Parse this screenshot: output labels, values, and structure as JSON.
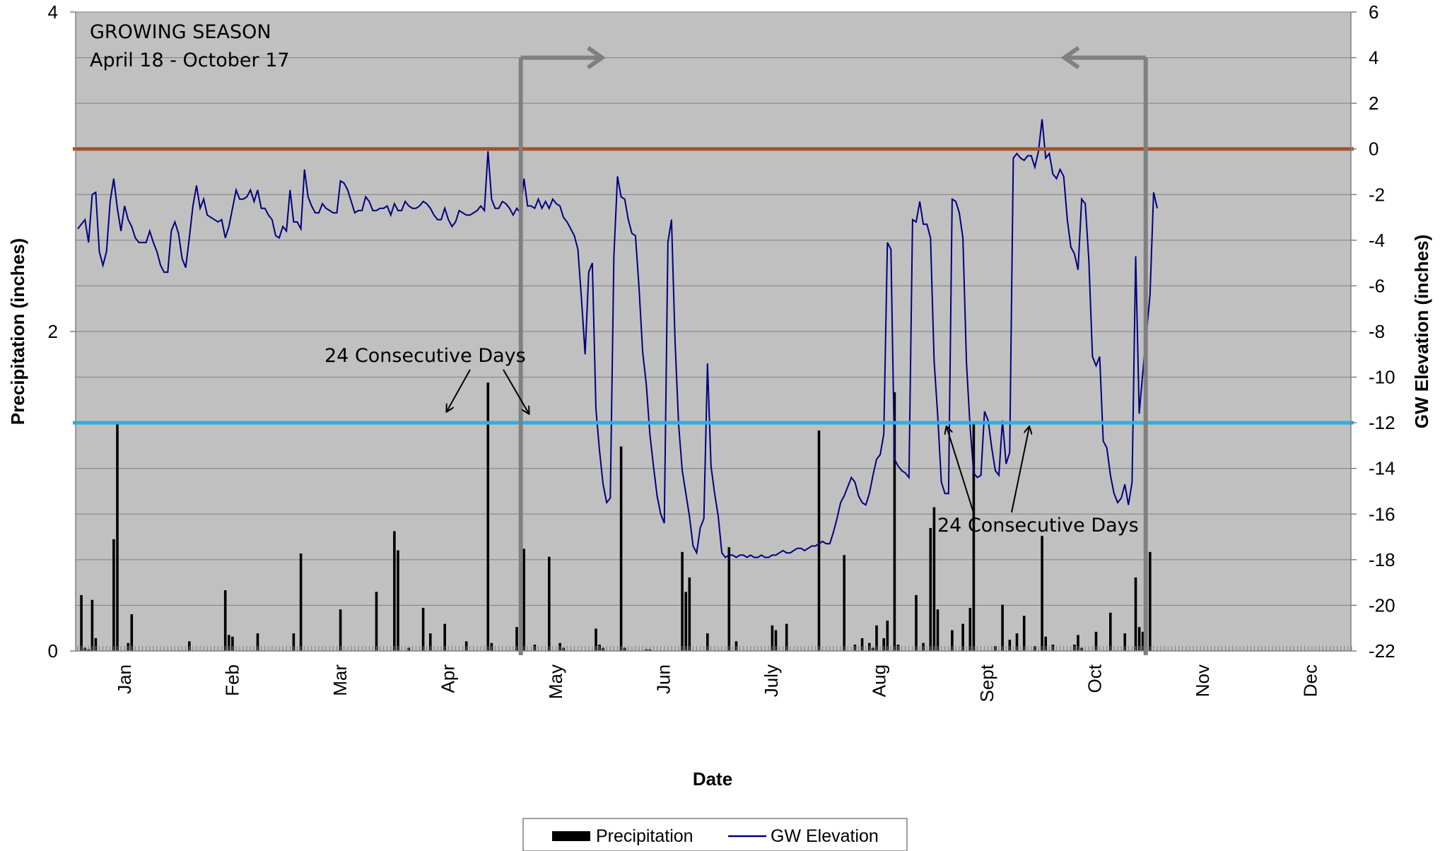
{
  "chart_data": {
    "type": "bar+line",
    "xlabel": "Date",
    "ylabel_left": "Precipitation (inches)",
    "ylabel_right": "GW Elevation (inches)",
    "ylim_left": [
      0,
      4
    ],
    "ylim_right": [
      -22,
      6
    ],
    "yticks_left": [
      "0",
      "2",
      "4"
    ],
    "yticks_right": [
      "6",
      "4",
      "2",
      "0",
      "-2",
      "-4",
      "-6",
      "-8",
      "-10",
      "-12",
      "-14",
      "-16",
      "-18",
      "-20",
      "-22"
    ],
    "months": [
      "Jan",
      "Feb",
      "Mar",
      "Apr",
      "May",
      "Jun",
      "July",
      "Aug",
      "Sept",
      "Oct",
      "Nov",
      "Dec"
    ],
    "grid": "horizontal",
    "legend_position": "bottom",
    "legend": [
      {
        "label": "Precipitation",
        "color": "#000000"
      },
      {
        "label": "GW Elevation",
        "color": "#00007f"
      }
    ],
    "precipitation": [
      [
        1,
        0.35
      ],
      [
        2,
        0.02
      ],
      [
        3,
        0.01
      ],
      [
        4,
        0.32
      ],
      [
        5,
        0.08
      ],
      [
        10,
        0.7
      ],
      [
        11,
        1.43
      ],
      [
        14,
        0.05
      ],
      [
        15,
        0.23
      ],
      [
        31,
        0.06
      ],
      [
        41,
        0.38
      ],
      [
        42,
        0.1
      ],
      [
        43,
        0.09
      ],
      [
        50,
        0.11
      ],
      [
        60,
        0.11
      ],
      [
        62,
        0.61
      ],
      [
        73,
        0.26
      ],
      [
        83,
        0.37
      ],
      [
        88,
        0.75
      ],
      [
        89,
        0.63
      ],
      [
        92,
        0.02
      ],
      [
        96,
        0.27
      ],
      [
        98,
        0.11
      ],
      [
        102,
        0.17
      ],
      [
        108,
        0.06
      ],
      [
        114,
        1.68
      ],
      [
        115,
        0.05
      ],
      [
        122,
        0.15
      ],
      [
        123,
        0.25
      ],
      [
        124,
        0.64
      ],
      [
        127,
        0.04
      ],
      [
        131,
        0.59
      ],
      [
        134,
        0.05
      ],
      [
        135,
        0.02
      ],
      [
        144,
        0.14
      ],
      [
        145,
        0.04
      ],
      [
        146,
        0.02
      ],
      [
        151,
        1.28
      ],
      [
        152,
        0.02
      ],
      [
        158,
        0.01
      ],
      [
        159,
        0.01
      ],
      [
        168,
        0.62
      ],
      [
        169,
        0.37
      ],
      [
        170,
        0.46
      ],
      [
        175,
        0.11
      ],
      [
        181,
        0.65
      ],
      [
        183,
        0.06
      ],
      [
        193,
        0.16
      ],
      [
        194,
        0.13
      ],
      [
        197,
        0.17
      ],
      [
        206,
        1.38
      ],
      [
        213,
        0.6
      ],
      [
        216,
        0.04
      ],
      [
        218,
        0.08
      ],
      [
        220,
        0.05
      ],
      [
        221,
        0.02
      ],
      [
        222,
        0.16
      ],
      [
        224,
        0.08
      ],
      [
        225,
        0.19
      ],
      [
        227,
        1.62
      ],
      [
        228,
        0.04
      ],
      [
        233,
        0.35
      ],
      [
        235,
        0.05
      ],
      [
        237,
        0.77
      ],
      [
        238,
        0.9
      ],
      [
        239,
        0.26
      ],
      [
        243,
        0.13
      ],
      [
        246,
        0.17
      ],
      [
        248,
        0.27
      ],
      [
        249,
        1.43
      ],
      [
        255,
        0.03
      ],
      [
        257,
        0.29
      ],
      [
        259,
        0.07
      ],
      [
        261,
        0.11
      ],
      [
        263,
        0.22
      ],
      [
        266,
        0.03
      ],
      [
        268,
        0.72
      ],
      [
        269,
        0.09
      ],
      [
        271,
        0.04
      ],
      [
        277,
        0.04
      ],
      [
        278,
        0.1
      ],
      [
        279,
        0.02
      ],
      [
        283,
        0.12
      ],
      [
        287,
        0.24
      ],
      [
        291,
        0.11
      ],
      [
        294,
        0.46
      ],
      [
        295,
        0.15
      ],
      [
        296,
        0.12
      ],
      [
        297,
        0.07
      ],
      [
        298,
        0.62
      ]
    ],
    "gw_elevation": [
      [
        0,
        -3.5
      ],
      [
        2,
        -3.1
      ],
      [
        3,
        -4.1
      ],
      [
        4,
        -2
      ],
      [
        5,
        -1.9
      ],
      [
        6,
        -4.5
      ],
      [
        7,
        -5.1
      ],
      [
        8,
        -4.5
      ],
      [
        9,
        -2.3
      ],
      [
        10,
        -1.3
      ],
      [
        11,
        -2.6
      ],
      [
        12,
        -3.6
      ],
      [
        13,
        -2.5
      ],
      [
        14,
        -3.1
      ],
      [
        15,
        -3.4
      ],
      [
        16,
        -3.9
      ],
      [
        17,
        -4.1
      ],
      [
        19,
        -4.1
      ],
      [
        20,
        -3.6
      ],
      [
        21,
        -4.1
      ],
      [
        22,
        -4.5
      ],
      [
        23,
        -5.1
      ],
      [
        24,
        -5.4
      ],
      [
        25,
        -5.4
      ],
      [
        26,
        -3.6
      ],
      [
        27,
        -3.2
      ],
      [
        28,
        -3.7
      ],
      [
        29,
        -4.8
      ],
      [
        30,
        -5.2
      ],
      [
        31,
        -3.9
      ],
      [
        32,
        -2.5
      ],
      [
        33,
        -1.6
      ],
      [
        34,
        -2.6
      ],
      [
        35,
        -2.2
      ],
      [
        36,
        -2.9
      ],
      [
        38,
        -3.1
      ],
      [
        39,
        -3.2
      ],
      [
        40,
        -3.1
      ],
      [
        41,
        -3.9
      ],
      [
        42,
        -3.4
      ],
      [
        43,
        -2.6
      ],
      [
        44,
        -1.8
      ],
      [
        45,
        -2.2
      ],
      [
        46,
        -2.2
      ],
      [
        47,
        -2.1
      ],
      [
        48,
        -1.8
      ],
      [
        49,
        -2.3
      ],
      [
        50,
        -1.8
      ],
      [
        51,
        -2.6
      ],
      [
        52,
        -2.6
      ],
      [
        53,
        -2.9
      ],
      [
        54,
        -3.1
      ],
      [
        55,
        -3.8
      ],
      [
        56,
        -3.9
      ],
      [
        57,
        -3.4
      ],
      [
        58,
        -3.6
      ],
      [
        59,
        -1.8
      ],
      [
        60,
        -3.2
      ],
      [
        61,
        -3.2
      ],
      [
        62,
        -3.5
      ],
      [
        63,
        -0.9
      ],
      [
        64,
        -2.1
      ],
      [
        65,
        -2.5
      ],
      [
        66,
        -2.8
      ],
      [
        67,
        -2.8
      ],
      [
        68,
        -2.4
      ],
      [
        69,
        -2.6
      ],
      [
        70,
        -2.7
      ],
      [
        71,
        -2.8
      ],
      [
        72,
        -2.8
      ],
      [
        73,
        -1.4
      ],
      [
        74,
        -1.5
      ],
      [
        75,
        -1.8
      ],
      [
        76,
        -2.3
      ],
      [
        77,
        -2.8
      ],
      [
        78,
        -2.7
      ],
      [
        79,
        -2.7
      ],
      [
        80,
        -2.1
      ],
      [
        81,
        -2.3
      ],
      [
        82,
        -2.7
      ],
      [
        83,
        -2.7
      ],
      [
        84,
        -2.6
      ],
      [
        85,
        -2.6
      ],
      [
        86,
        -2.5
      ],
      [
        87,
        -2.9
      ],
      [
        88,
        -2.4
      ],
      [
        89,
        -2.7
      ],
      [
        90,
        -2.7
      ],
      [
        91,
        -2.3
      ],
      [
        92,
        -2.5
      ],
      [
        93,
        -2.6
      ],
      [
        94,
        -2.6
      ],
      [
        95,
        -2.5
      ],
      [
        96,
        -2.3
      ],
      [
        97,
        -2.4
      ],
      [
        98,
        -2.6
      ],
      [
        99,
        -2.9
      ],
      [
        100,
        -3.1
      ],
      [
        101,
        -3.1
      ],
      [
        102,
        -2.6
      ],
      [
        103,
        -3.1
      ],
      [
        104,
        -3.4
      ],
      [
        105,
        -3.2
      ],
      [
        106,
        -2.7
      ],
      [
        107,
        -2.8
      ],
      [
        108,
        -2.9
      ],
      [
        109,
        -2.9
      ],
      [
        110,
        -2.8
      ],
      [
        111,
        -2.7
      ],
      [
        112,
        -2.5
      ],
      [
        113,
        -2.7
      ],
      [
        114,
        -0.1
      ],
      [
        115,
        -2.2
      ],
      [
        116,
        -2.6
      ],
      [
        117,
        -2.6
      ],
      [
        118,
        -2.3
      ],
      [
        119,
        -2.4
      ],
      [
        120,
        -2.6
      ],
      [
        121,
        -2.9
      ],
      [
        122,
        -2.6
      ],
      [
        123,
        -2.8
      ],
      [
        124,
        -1.3
      ],
      [
        125,
        -2.5
      ],
      [
        126,
        -2.5
      ],
      [
        127,
        -2.6
      ],
      [
        128,
        -2.2
      ],
      [
        129,
        -2.6
      ],
      [
        130,
        -2.3
      ],
      [
        131,
        -2.6
      ],
      [
        132,
        -2.2
      ],
      [
        133,
        -2.4
      ],
      [
        134,
        -2.5
      ],
      [
        135,
        -3
      ],
      [
        136,
        -3.2
      ],
      [
        137,
        -3.5
      ],
      [
        138,
        -3.8
      ],
      [
        139,
        -4.4
      ],
      [
        140,
        -6.6
      ],
      [
        141,
        -9
      ],
      [
        142,
        -5.4
      ],
      [
        143,
        -5
      ],
      [
        144,
        -11.4
      ],
      [
        145,
        -13.2
      ],
      [
        146,
        -14.7
      ],
      [
        147,
        -15.5
      ],
      [
        148,
        -15.3
      ],
      [
        149,
        -4.7
      ],
      [
        150,
        -1.2
      ],
      [
        151,
        -2.1
      ],
      [
        152,
        -2.2
      ],
      [
        153,
        -3.1
      ],
      [
        154,
        -3.7
      ],
      [
        155,
        -3.8
      ],
      [
        156,
        -6.1
      ],
      [
        157,
        -8.9
      ],
      [
        158,
        -10.3
      ],
      [
        159,
        -12.5
      ],
      [
        160,
        -13.9
      ],
      [
        161,
        -15.2
      ],
      [
        162,
        -16
      ],
      [
        163,
        -16.4
      ],
      [
        164,
        -4.1
      ],
      [
        165,
        -3.1
      ],
      [
        166,
        -8.4
      ],
      [
        167,
        -12.1
      ],
      [
        168,
        -14.1
      ],
      [
        169,
        -15.1
      ],
      [
        170,
        -16.1
      ],
      [
        171,
        -17.4
      ],
      [
        172,
        -17.7
      ],
      [
        173,
        -16.6
      ],
      [
        174,
        -16.2
      ],
      [
        175,
        -9.4
      ],
      [
        176,
        -13.9
      ],
      [
        177,
        -15.1
      ],
      [
        178,
        -16.1
      ],
      [
        179,
        -17.7
      ],
      [
        180,
        -17.9
      ],
      [
        181,
        -17.8
      ],
      [
        182,
        -17.8
      ],
      [
        183,
        -17.9
      ],
      [
        184,
        -17.8
      ],
      [
        185,
        -17.8
      ],
      [
        186,
        -17.9
      ],
      [
        187,
        -17.8
      ],
      [
        188,
        -17.9
      ],
      [
        189,
        -17.9
      ],
      [
        190,
        -17.8
      ],
      [
        191,
        -17.9
      ],
      [
        192,
        -17.9
      ],
      [
        193,
        -17.8
      ],
      [
        194,
        -17.8
      ],
      [
        195,
        -17.7
      ],
      [
        196,
        -17.6
      ],
      [
        197,
        -17.7
      ],
      [
        198,
        -17.7
      ],
      [
        199,
        -17.6
      ],
      [
        200,
        -17.5
      ],
      [
        201,
        -17.5
      ],
      [
        202,
        -17.6
      ],
      [
        203,
        -17.5
      ],
      [
        204,
        -17.4
      ],
      [
        205,
        -17.4
      ],
      [
        206,
        -17.3
      ],
      [
        207,
        -17.2
      ],
      [
        208,
        -17.3
      ],
      [
        209,
        -17.3
      ],
      [
        210,
        -16.8
      ],
      [
        211,
        -16.2
      ],
      [
        212,
        -15.5
      ],
      [
        213,
        -15.2
      ],
      [
        214,
        -14.8
      ],
      [
        215,
        -14.4
      ],
      [
        216,
        -14.6
      ],
      [
        217,
        -15.2
      ],
      [
        218,
        -15.5
      ],
      [
        219,
        -15.6
      ],
      [
        220,
        -15.1
      ],
      [
        221,
        -14.3
      ],
      [
        222,
        -13.6
      ],
      [
        223,
        -13.4
      ],
      [
        224,
        -12.5
      ],
      [
        225,
        -4.1
      ],
      [
        226,
        -4.4
      ],
      [
        227,
        -13.6
      ],
      [
        228,
        -13.9
      ],
      [
        229,
        -14.1
      ],
      [
        230,
        -14.2
      ],
      [
        231,
        -14.4
      ],
      [
        232,
        -3.1
      ],
      [
        233,
        -3.2
      ],
      [
        234,
        -2.3
      ],
      [
        235,
        -3.3
      ],
      [
        236,
        -3.3
      ],
      [
        237,
        -3.9
      ],
      [
        238,
        -9.3
      ],
      [
        239,
        -11.7
      ],
      [
        240,
        -14.6
      ],
      [
        241,
        -15.1
      ],
      [
        242,
        -15.1
      ],
      [
        243,
        -2.2
      ],
      [
        244,
        -2.3
      ],
      [
        245,
        -2.8
      ],
      [
        246,
        -3.9
      ],
      [
        247,
        -9.4
      ],
      [
        248,
        -12.2
      ],
      [
        249,
        -14.2
      ],
      [
        250,
        -14.4
      ],
      [
        251,
        -14.3
      ],
      [
        252,
        -11.5
      ],
      [
        253,
        -11.9
      ],
      [
        254,
        -13.1
      ],
      [
        255,
        -14.1
      ],
      [
        256,
        -14.3
      ],
      [
        257,
        -11.9
      ],
      [
        258,
        -13.8
      ],
      [
        259,
        -13.3
      ],
      [
        260,
        -0.4
      ],
      [
        261,
        -0.2
      ],
      [
        262,
        -0.4
      ],
      [
        263,
        -0.5
      ],
      [
        264,
        -0.3
      ],
      [
        265,
        -0.3
      ],
      [
        266,
        -0.8
      ],
      [
        267,
        -0.1
      ],
      [
        268,
        1.3
      ],
      [
        269,
        -0.4
      ],
      [
        270,
        -0.2
      ],
      [
        271,
        -1.1
      ],
      [
        272,
        -1.3
      ],
      [
        273,
        -0.9
      ],
      [
        274,
        -1.2
      ],
      [
        275,
        -3.1
      ],
      [
        276,
        -4.3
      ],
      [
        277,
        -4.6
      ],
      [
        278,
        -5.3
      ],
      [
        279,
        -2.2
      ],
      [
        280,
        -2.4
      ],
      [
        281,
        -4.9
      ],
      [
        282,
        -9.1
      ],
      [
        283,
        -9.5
      ],
      [
        284,
        -9.1
      ],
      [
        285,
        -12.8
      ],
      [
        286,
        -13.1
      ],
      [
        287,
        -14.3
      ],
      [
        288,
        -15.1
      ],
      [
        289,
        -15.5
      ],
      [
        290,
        -15.3
      ],
      [
        291,
        -14.7
      ],
      [
        292,
        -15.6
      ],
      [
        293,
        -14.6
      ],
      [
        294,
        -4.7
      ],
      [
        295,
        -11.6
      ],
      [
        296,
        -9.8
      ],
      [
        297,
        -8.1
      ],
      [
        298,
        -6.4
      ],
      [
        299,
        -1.9
      ],
      [
        300,
        -2.6
      ]
    ],
    "reference_lines": [
      {
        "y_right": 0,
        "color": "#a0522d"
      },
      {
        "y_right": -12,
        "color": "#2ab0e0"
      }
    ],
    "growing_season_start_day": 108,
    "growing_season_end_day": 297
  },
  "annotations": {
    "season_title": "GROWING SEASON",
    "season_dates": "April 18 - October 17",
    "consecutive_days_1": "24 Consecutive Days",
    "consecutive_days_2": "24 Consecutive Days"
  }
}
